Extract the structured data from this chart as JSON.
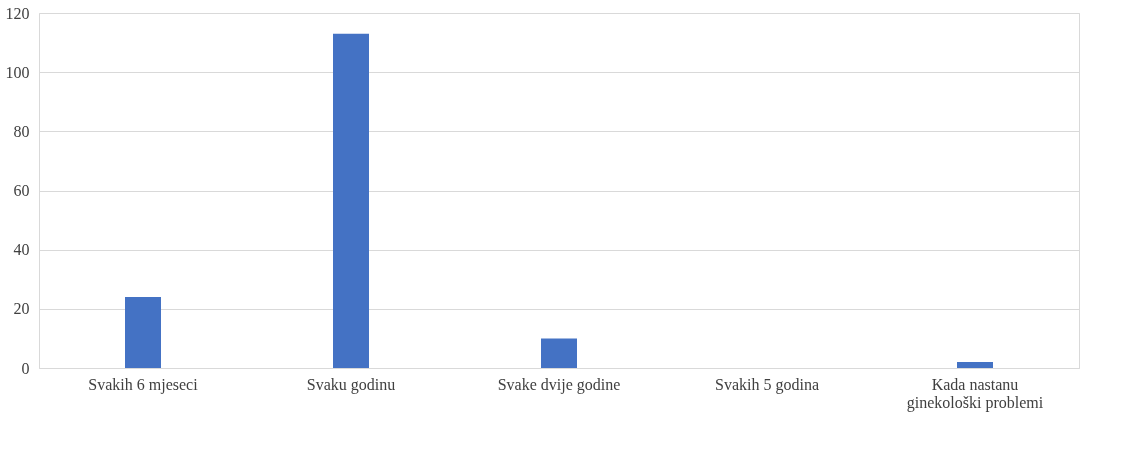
{
  "chart_data": {
    "type": "bar",
    "categories": [
      "Svakih 6 mjeseci",
      "Svaku godinu",
      "Svake dvije godine",
      "Svakih 5 godina",
      "Kada nastanu ginekološki problemi"
    ],
    "values": [
      24,
      113,
      10,
      0,
      2
    ],
    "color": "#4472c4",
    "ylim": [
      0,
      120
    ],
    "yticks": [
      0,
      20,
      40,
      60,
      80,
      100,
      120
    ],
    "grid": "y",
    "legend": false
  }
}
